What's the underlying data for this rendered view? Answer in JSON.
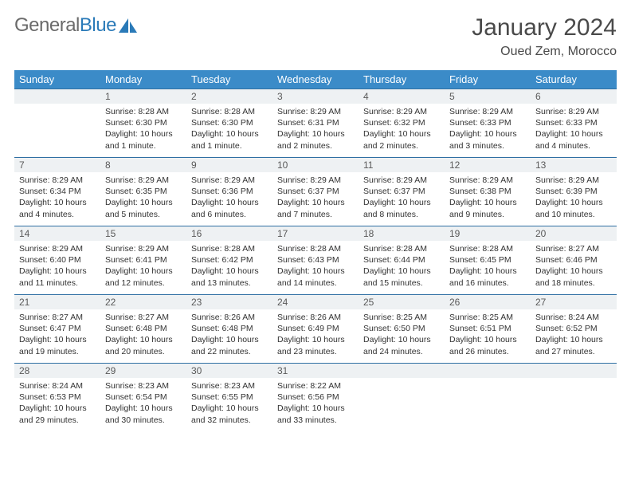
{
  "header": {
    "logo_gray": "General",
    "logo_blue": "Blue",
    "month_title": "January 2024",
    "location": "Oued Zem, Morocco"
  },
  "calendar": {
    "day_headers": [
      "Sunday",
      "Monday",
      "Tuesday",
      "Wednesday",
      "Thursday",
      "Friday",
      "Saturday"
    ],
    "header_bg": "#3b8bc8",
    "daynum_bg": "#eef1f3",
    "rule_color": "#2f6fa3",
    "start_weekday": 1,
    "days": [
      {
        "n": "1",
        "sunrise": "8:28 AM",
        "sunset": "6:30 PM",
        "dl": "10 hours and 1 minute."
      },
      {
        "n": "2",
        "sunrise": "8:28 AM",
        "sunset": "6:30 PM",
        "dl": "10 hours and 1 minute."
      },
      {
        "n": "3",
        "sunrise": "8:29 AM",
        "sunset": "6:31 PM",
        "dl": "10 hours and 2 minutes."
      },
      {
        "n": "4",
        "sunrise": "8:29 AM",
        "sunset": "6:32 PM",
        "dl": "10 hours and 2 minutes."
      },
      {
        "n": "5",
        "sunrise": "8:29 AM",
        "sunset": "6:33 PM",
        "dl": "10 hours and 3 minutes."
      },
      {
        "n": "6",
        "sunrise": "8:29 AM",
        "sunset": "6:33 PM",
        "dl": "10 hours and 4 minutes."
      },
      {
        "n": "7",
        "sunrise": "8:29 AM",
        "sunset": "6:34 PM",
        "dl": "10 hours and 4 minutes."
      },
      {
        "n": "8",
        "sunrise": "8:29 AM",
        "sunset": "6:35 PM",
        "dl": "10 hours and 5 minutes."
      },
      {
        "n": "9",
        "sunrise": "8:29 AM",
        "sunset": "6:36 PM",
        "dl": "10 hours and 6 minutes."
      },
      {
        "n": "10",
        "sunrise": "8:29 AM",
        "sunset": "6:37 PM",
        "dl": "10 hours and 7 minutes."
      },
      {
        "n": "11",
        "sunrise": "8:29 AM",
        "sunset": "6:37 PM",
        "dl": "10 hours and 8 minutes."
      },
      {
        "n": "12",
        "sunrise": "8:29 AM",
        "sunset": "6:38 PM",
        "dl": "10 hours and 9 minutes."
      },
      {
        "n": "13",
        "sunrise": "8:29 AM",
        "sunset": "6:39 PM",
        "dl": "10 hours and 10 minutes."
      },
      {
        "n": "14",
        "sunrise": "8:29 AM",
        "sunset": "6:40 PM",
        "dl": "10 hours and 11 minutes."
      },
      {
        "n": "15",
        "sunrise": "8:29 AM",
        "sunset": "6:41 PM",
        "dl": "10 hours and 12 minutes."
      },
      {
        "n": "16",
        "sunrise": "8:28 AM",
        "sunset": "6:42 PM",
        "dl": "10 hours and 13 minutes."
      },
      {
        "n": "17",
        "sunrise": "8:28 AM",
        "sunset": "6:43 PM",
        "dl": "10 hours and 14 minutes."
      },
      {
        "n": "18",
        "sunrise": "8:28 AM",
        "sunset": "6:44 PM",
        "dl": "10 hours and 15 minutes."
      },
      {
        "n": "19",
        "sunrise": "8:28 AM",
        "sunset": "6:45 PM",
        "dl": "10 hours and 16 minutes."
      },
      {
        "n": "20",
        "sunrise": "8:27 AM",
        "sunset": "6:46 PM",
        "dl": "10 hours and 18 minutes."
      },
      {
        "n": "21",
        "sunrise": "8:27 AM",
        "sunset": "6:47 PM",
        "dl": "10 hours and 19 minutes."
      },
      {
        "n": "22",
        "sunrise": "8:27 AM",
        "sunset": "6:48 PM",
        "dl": "10 hours and 20 minutes."
      },
      {
        "n": "23",
        "sunrise": "8:26 AM",
        "sunset": "6:48 PM",
        "dl": "10 hours and 22 minutes."
      },
      {
        "n": "24",
        "sunrise": "8:26 AM",
        "sunset": "6:49 PM",
        "dl": "10 hours and 23 minutes."
      },
      {
        "n": "25",
        "sunrise": "8:25 AM",
        "sunset": "6:50 PM",
        "dl": "10 hours and 24 minutes."
      },
      {
        "n": "26",
        "sunrise": "8:25 AM",
        "sunset": "6:51 PM",
        "dl": "10 hours and 26 minutes."
      },
      {
        "n": "27",
        "sunrise": "8:24 AM",
        "sunset": "6:52 PM",
        "dl": "10 hours and 27 minutes."
      },
      {
        "n": "28",
        "sunrise": "8:24 AM",
        "sunset": "6:53 PM",
        "dl": "10 hours and 29 minutes."
      },
      {
        "n": "29",
        "sunrise": "8:23 AM",
        "sunset": "6:54 PM",
        "dl": "10 hours and 30 minutes."
      },
      {
        "n": "30",
        "sunrise": "8:23 AM",
        "sunset": "6:55 PM",
        "dl": "10 hours and 32 minutes."
      },
      {
        "n": "31",
        "sunrise": "8:22 AM",
        "sunset": "6:56 PM",
        "dl": "10 hours and 33 minutes."
      }
    ],
    "labels": {
      "sunrise_prefix": "Sunrise: ",
      "sunset_prefix": "Sunset: ",
      "daylight_prefix": "Daylight: "
    }
  }
}
